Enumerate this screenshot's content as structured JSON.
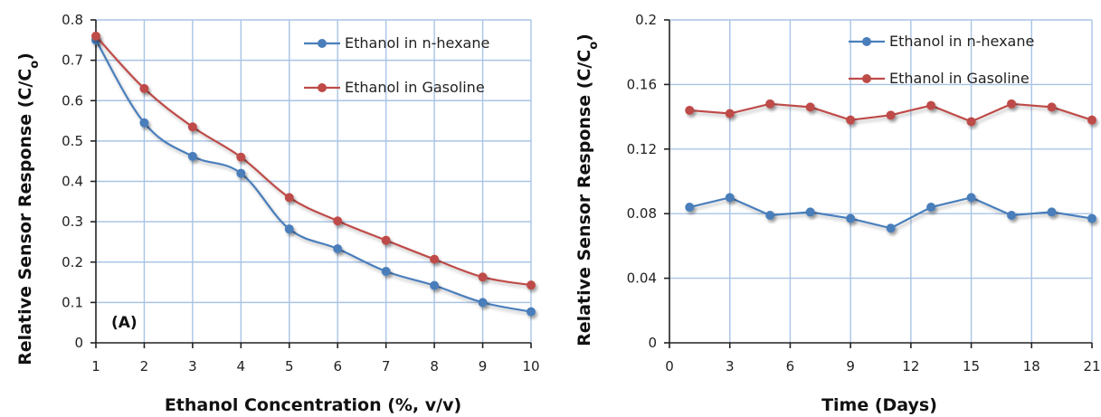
{
  "chart_data": [
    {
      "type": "line",
      "panel_label": "(A)",
      "xlabel": "Ethanol Concentration (%, v/v)",
      "ylabel_main": "Relative Sensor Response (C/C",
      "ylabel_sub": "o",
      "ylabel_close": ")",
      "x": [
        1,
        2,
        3,
        4,
        5,
        6,
        7,
        8,
        9,
        10
      ],
      "xlim": [
        1,
        10
      ],
      "ylim": [
        0,
        0.8
      ],
      "xticks": [
        1,
        2,
        3,
        4,
        5,
        6,
        7,
        8,
        9,
        10
      ],
      "xtick_labels": [
        "1",
        "2",
        "3",
        "4",
        "5",
        "6",
        "7",
        "8",
        "9",
        "10"
      ],
      "yticks": [
        0,
        0.1,
        0.2,
        0.3,
        0.4,
        0.5,
        0.6,
        0.7,
        0.8
      ],
      "ytick_labels": [
        "0",
        "0.1",
        "0.2",
        "0.3",
        "0.4",
        "0.5",
        "0.6",
        "0.7",
        "0.8"
      ],
      "grid": true,
      "smooth": true,
      "legend_position": "top-right",
      "series": [
        {
          "name": "Ethanol in n-hexane",
          "color": "#4a7ebb",
          "values": [
            0.75,
            0.545,
            0.462,
            0.42,
            0.282,
            0.233,
            0.177,
            0.142,
            0.1,
            0.077
          ]
        },
        {
          "name": "Ethanol in Gasoline",
          "color": "#be4b48",
          "values": [
            0.76,
            0.63,
            0.535,
            0.46,
            0.36,
            0.302,
            0.254,
            0.207,
            0.163,
            0.143
          ]
        }
      ]
    },
    {
      "type": "line",
      "xlabel": "Time (Days)",
      "ylabel_main": "Relative Sensor Response (C/C",
      "ylabel_sub": "o",
      "ylabel_close": ")",
      "x": [
        1,
        3,
        5,
        7,
        9,
        11,
        13,
        15,
        17,
        19,
        21
      ],
      "xlim": [
        0,
        21
      ],
      "ylim": [
        0,
        0.2
      ],
      "xticks": [
        0,
        3,
        6,
        9,
        12,
        15,
        18,
        21
      ],
      "xtick_labels": [
        "0",
        "3",
        "6",
        "9",
        "12",
        "15",
        "18",
        "21"
      ],
      "yticks": [
        0,
        0.04,
        0.08,
        0.12,
        0.16,
        0.2
      ],
      "ytick_labels": [
        "0",
        "0.04",
        "0.08",
        "0.12",
        "0.16",
        "0.2"
      ],
      "grid": true,
      "smooth": false,
      "legend_position": "top-right",
      "series": [
        {
          "name": "Ethanol in n-hexane",
          "color": "#4a7ebb",
          "values": [
            0.084,
            0.09,
            0.079,
            0.081,
            0.077,
            0.071,
            0.084,
            0.09,
            0.079,
            0.081,
            0.077
          ]
        },
        {
          "name": "Ethanol in Gasoline",
          "color": "#be4b48",
          "values": [
            0.144,
            0.142,
            0.148,
            0.146,
            0.138,
            0.141,
            0.147,
            0.137,
            0.148,
            0.146,
            0.138
          ]
        }
      ]
    }
  ]
}
